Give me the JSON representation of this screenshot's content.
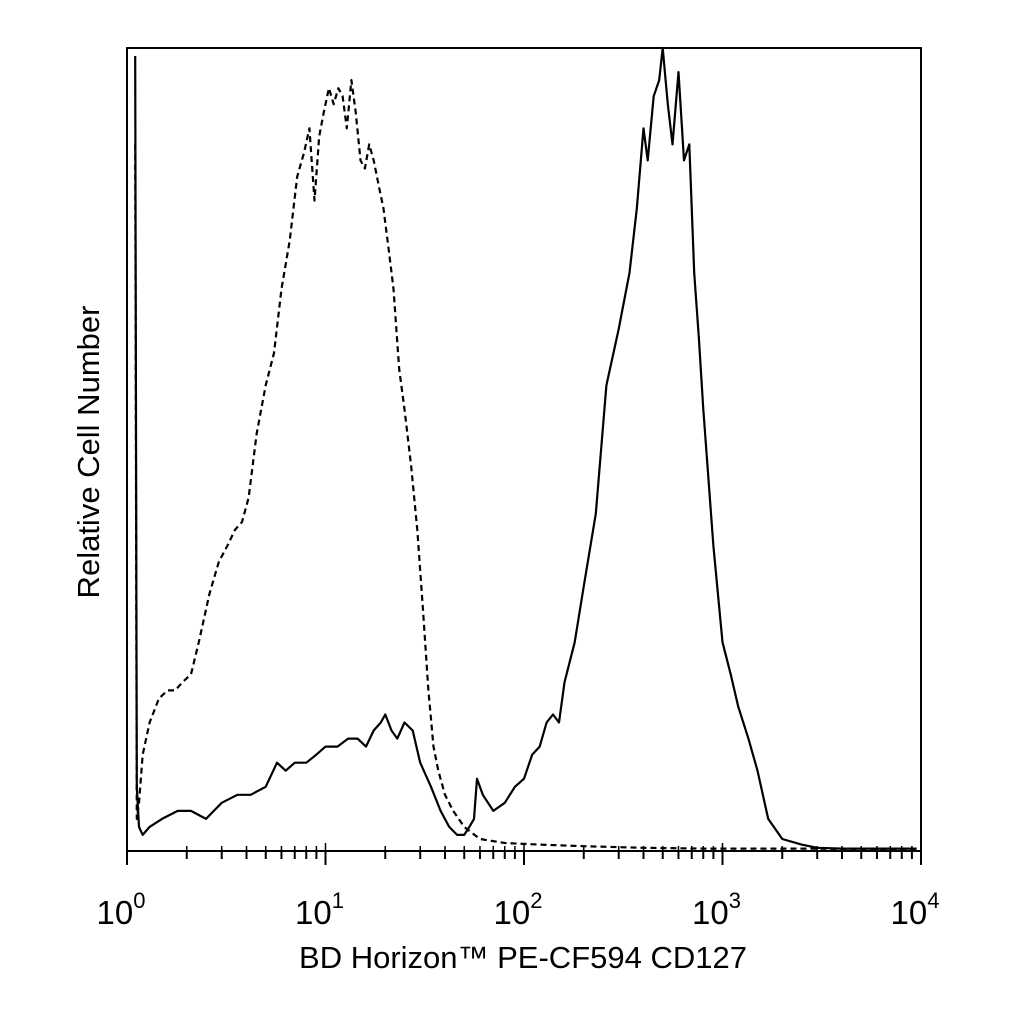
{
  "chart_data": {
    "type": "line",
    "title": "",
    "xlabel": "BD Horizon™ PE-CF594 CD127",
    "ylabel": "Relative Cell Number",
    "xscale": "log",
    "xlim": [
      1,
      10000
    ],
    "ylim": [
      0,
      100
    ],
    "x_ticks": [
      {
        "base": "10",
        "exp": "0"
      },
      {
        "base": "10",
        "exp": "1"
      },
      {
        "base": "10",
        "exp": "2"
      },
      {
        "base": "10",
        "exp": "3"
      },
      {
        "base": "10",
        "exp": "4"
      }
    ],
    "grid": false,
    "legend": "none",
    "series": [
      {
        "style": "dashed",
        "color": "#000000",
        "x": [
          1.1,
          1.12,
          1.15,
          1.2,
          1.3,
          1.45,
          1.6,
          1.75,
          1.9,
          2.1,
          2.3,
          2.6,
          2.9,
          3.2,
          3.5,
          3.8,
          4.1,
          4.5,
          5.0,
          5.5,
          6.0,
          6.6,
          7.2,
          7.8,
          8.3,
          8.8,
          9.3,
          9.8,
          10.4,
          11.0,
          11.6,
          12.2,
          12.8,
          13.5,
          14.2,
          15.0,
          15.8,
          16.6,
          17.5,
          18.5,
          19.6,
          20.8,
          22.0,
          23.5,
          25.0,
          27.0,
          29.0,
          31.0,
          33.0,
          35.0,
          37.0,
          40.0,
          44.0,
          50.0,
          60.0,
          80.0,
          120.0,
          200.0,
          400.0,
          800.0,
          1500.0,
          3000.0,
          6000.0,
          9500.0
        ],
        "values": [
          88,
          4,
          6,
          12,
          16,
          19,
          20,
          20,
          21,
          22,
          26,
          32,
          36,
          38,
          40,
          41,
          44,
          52,
          58,
          62,
          70,
          76,
          84,
          87,
          90,
          81,
          89,
          92,
          95,
          93,
          95,
          94,
          90,
          96,
          92,
          86,
          85,
          88,
          86,
          83,
          80,
          75,
          70,
          60,
          55,
          48,
          40,
          30,
          20,
          13,
          10,
          7,
          5,
          3,
          1.5,
          1,
          0.8,
          0.6,
          0.4,
          0.3,
          0.3,
          0.3,
          0.2,
          0.2
        ]
      },
      {
        "style": "solid",
        "color": "#000000",
        "x": [
          1.1,
          1.12,
          1.15,
          1.2,
          1.3,
          1.5,
          1.8,
          2.1,
          2.5,
          3.0,
          3.6,
          4.2,
          5.0,
          5.7,
          6.3,
          7.0,
          8.0,
          9.0,
          10.0,
          11.5,
          13.0,
          14.5,
          16.0,
          17.5,
          19.0,
          20.0,
          21.5,
          23.0,
          25.0,
          27.5,
          30.0,
          34.0,
          38.0,
          42.0,
          46.0,
          50.0,
          53.0,
          56.0,
          58.0,
          62.0,
          70.0,
          80.0,
          90.0,
          100.0,
          110.0,
          120.0,
          130.0,
          140.0,
          150.0,
          160.0,
          180.0,
          200.0,
          230.0,
          260.0,
          300.0,
          340.0,
          370.0,
          400.0,
          420.0,
          450.0,
          480.0,
          500.0,
          530.0,
          560.0,
          600.0,
          640.0,
          680.0,
          720.0,
          760.0,
          800.0,
          900.0,
          1000.0,
          1100.0,
          1200.0,
          1350.0,
          1500.0,
          1700.0,
          2000.0,
          2500.0,
          3000.0,
          4000.0,
          6000.0,
          9500.0
        ],
        "values": [
          99,
          8,
          3,
          2,
          3,
          4,
          5,
          5,
          4,
          6,
          7,
          7,
          8,
          11,
          10,
          11,
          11,
          12,
          13,
          13,
          14,
          14,
          13,
          15,
          16,
          17,
          15,
          14,
          16,
          15,
          11,
          8,
          5,
          3,
          2,
          2,
          3,
          4,
          9,
          7,
          5,
          6,
          8,
          9,
          12,
          13,
          16,
          17,
          16,
          21,
          26,
          33,
          42,
          58,
          65,
          72,
          80,
          90,
          86,
          94,
          96,
          100,
          93,
          88,
          97,
          86,
          88,
          72,
          64,
          55,
          38,
          26,
          22,
          18,
          14,
          10,
          4,
          1.5,
          0.8,
          0.4,
          0.3,
          0.3,
          0.3
        ]
      }
    ]
  }
}
